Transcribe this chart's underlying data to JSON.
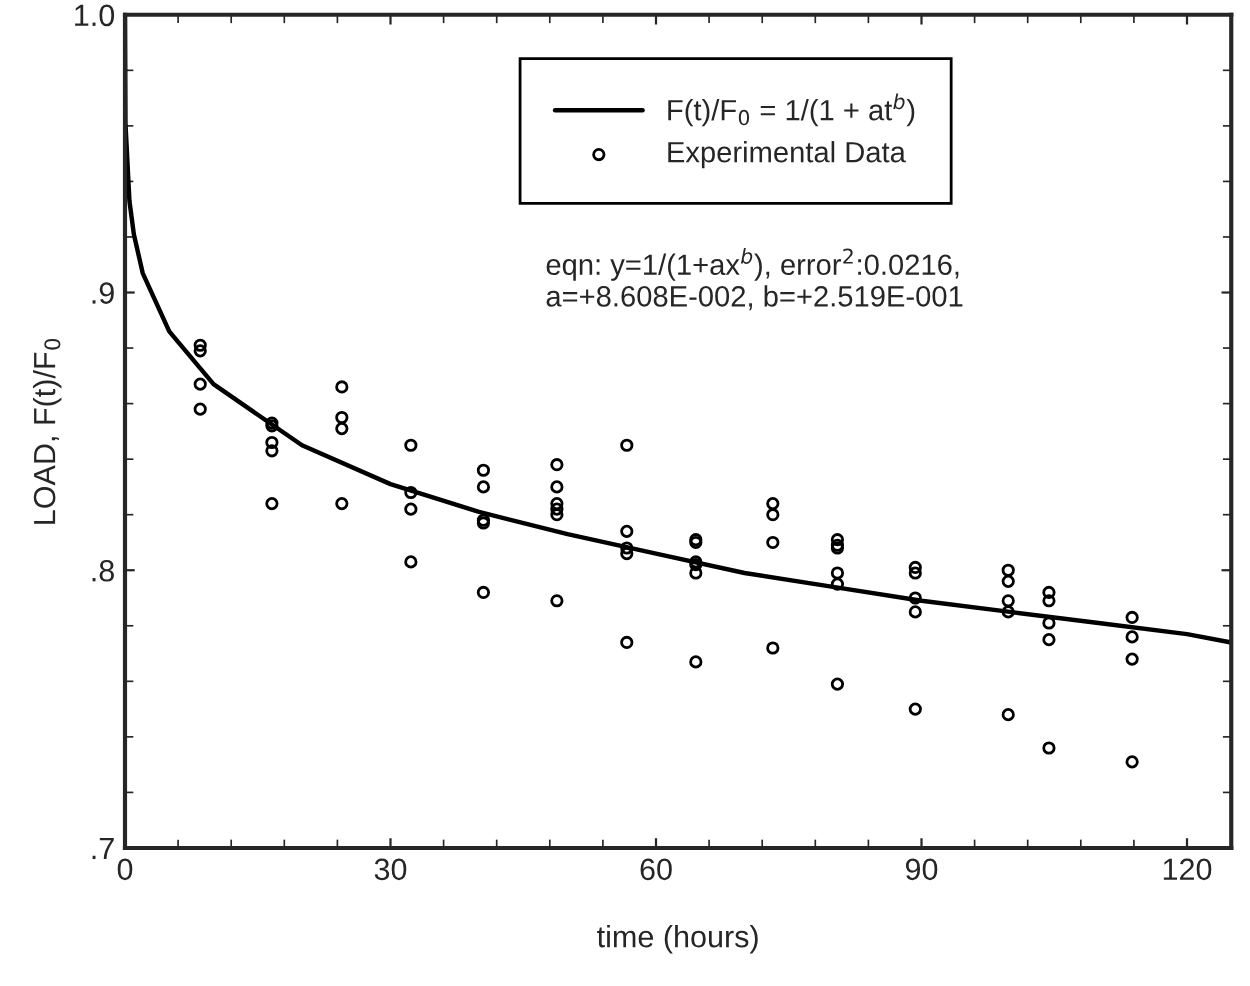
{
  "chart_data": {
    "type": "scatter",
    "xlabel": "time (hours)",
    "ylabel": "LOAD, F(t)/F$_{0}$",
    "annotations": [
      "eqn: y=1/(1+ax$^{b}$), error$^{2}$:0.0216,\na=+8.608E-002, b=+2.519E-001"
    ],
    "xlim": [
      0,
      125
    ],
    "ylim": [
      0.7,
      1.0
    ],
    "xticks": [
      0,
      30,
      60,
      90,
      120
    ],
    "yticks": [
      {
        "value": 0.7,
        "label": ".7"
      },
      {
        "value": 0.8,
        "label": ".8"
      },
      {
        "value": 0.9,
        "label": ".9"
      },
      {
        "value": 1.0,
        "label": "1.0"
      }
    ],
    "grid": false,
    "legend": "top right",
    "series": [
      {
        "name": "F(t)/F$_{0}$ = 1/(1 + at$^{b}$)",
        "type": "line",
        "marker": "none",
        "line_style": "solid",
        "color": "#000000",
        "x": [
          0,
          0.05,
          0.5,
          1,
          2,
          5,
          10,
          20,
          30,
          40,
          50,
          60,
          70,
          80,
          90,
          100,
          110,
          120,
          125
        ],
        "values": [
          1.0,
          0.961,
          0.933,
          0.921,
          0.907,
          0.886,
          0.867,
          0.845,
          0.831,
          0.821,
          0.813,
          0.806,
          0.799,
          0.794,
          0.789,
          0.785,
          0.781,
          0.777,
          0.774
        ]
      },
      {
        "name": "Experimental Data",
        "marker": "circle",
        "color": "#000000",
        "x": [
          8.5,
          8.5,
          8.5,
          8.5,
          16.6,
          16.6,
          16.6,
          16.6,
          16.6,
          24.5,
          24.5,
          24.5,
          24.5,
          32.3,
          32.3,
          32.3,
          32.3,
          40.5,
          40.5,
          40.5,
          40.5,
          40.5,
          48.8,
          48.8,
          48.8,
          48.8,
          48.8,
          48.8,
          56.7,
          56.7,
          56.7,
          56.7,
          56.7,
          64.5,
          64.5,
          64.5,
          64.5,
          64.5,
          64.5,
          73.2,
          73.2,
          73.2,
          73.2,
          80.5,
          80.5,
          80.5,
          80.5,
          80.5,
          80.5,
          89.3,
          89.3,
          89.3,
          89.3,
          89.3,
          99.8,
          99.8,
          99.8,
          99.8,
          99.8,
          104.4,
          104.4,
          104.4,
          104.4,
          104.4,
          113.8,
          113.8,
          113.8,
          113.8
        ],
        "values": [
          0.881,
          0.879,
          0.867,
          0.858,
          0.853,
          0.852,
          0.846,
          0.843,
          0.824,
          0.866,
          0.855,
          0.851,
          0.824,
          0.845,
          0.828,
          0.822,
          0.803,
          0.836,
          0.83,
          0.818,
          0.817,
          0.792,
          0.838,
          0.83,
          0.824,
          0.822,
          0.82,
          0.789,
          0.845,
          0.814,
          0.808,
          0.806,
          0.774,
          0.811,
          0.81,
          0.803,
          0.802,
          0.799,
          0.767,
          0.824,
          0.82,
          0.81,
          0.772,
          0.811,
          0.809,
          0.808,
          0.799,
          0.795,
          0.759,
          0.801,
          0.799,
          0.79,
          0.785,
          0.75,
          0.8,
          0.796,
          0.789,
          0.785,
          0.748,
          0.792,
          0.789,
          0.781,
          0.775,
          0.736,
          0.783,
          0.776,
          0.768,
          0.731
        ]
      }
    ]
  }
}
